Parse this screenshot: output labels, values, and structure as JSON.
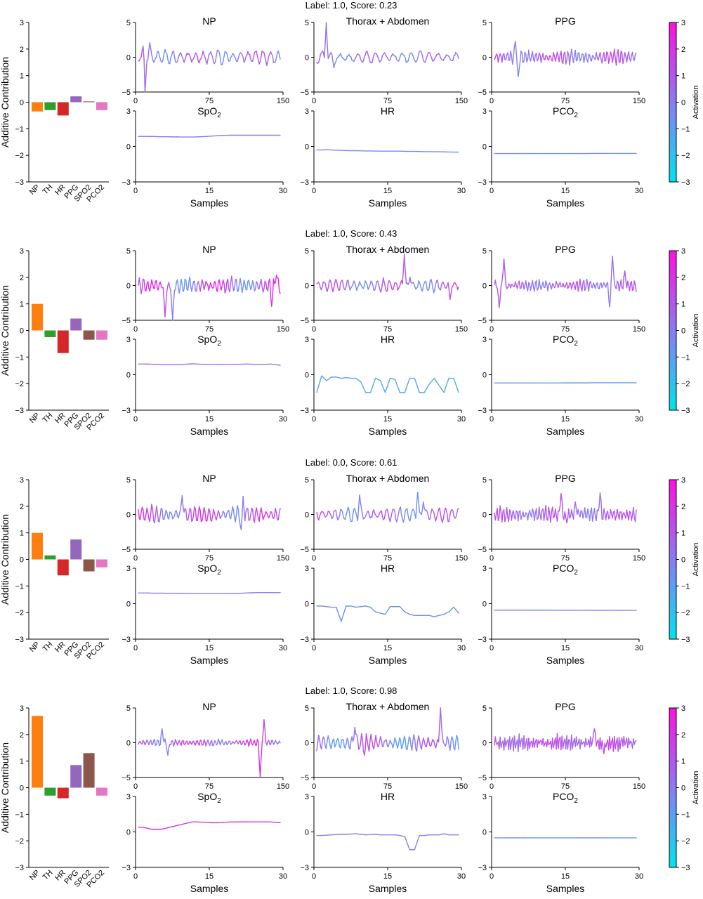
{
  "figure": {
    "colorbar": {
      "label": "Activation",
      "range": [
        -3,
        3
      ],
      "ticks": [
        "3",
        "2",
        "1",
        "0",
        "−1",
        "−2",
        "−3"
      ],
      "gradient": [
        "#00e5ee",
        "#8a7cf0",
        "#ff10e0"
      ]
    },
    "signal_titles": {
      "np": "NP",
      "thorax": "Thorax + Abdomen",
      "ppg": "PPG",
      "spo2": "SpO",
      "spo2_sub": "2",
      "hr": "HR",
      "pco2": "PCO",
      "pco2_sub": "2"
    },
    "x_label": "Samples",
    "y_label": "Additive Contribution",
    "bar_categories": [
      "NP",
      "TH",
      "HR",
      "PPG",
      "SPO2",
      "PCO2"
    ],
    "bar_colors": [
      "#ff7f0e",
      "#2ca02c",
      "#d62728",
      "#9467bd",
      "#8c564b",
      "#e377c2"
    ],
    "bar_yticks": [
      "3",
      "2",
      "1",
      "0",
      "−1",
      "−2",
      "−3"
    ],
    "top_yticks": [
      "5",
      "0",
      "−5"
    ],
    "top_xticks": [
      "0",
      "75",
      "150"
    ],
    "bottom_yticks": [
      "3",
      "0",
      "−3"
    ],
    "bottom_xticks": [
      "0",
      "15",
      "30"
    ]
  },
  "chart_data": [
    {
      "type": "bar",
      "title": "Label: 1.0, Score: 0.23",
      "categories": [
        "NP",
        "TH",
        "HR",
        "PPG",
        "SPO2",
        "PCO2"
      ],
      "values": [
        -0.35,
        -0.3,
        -0.5,
        0.22,
        0.03,
        -0.3
      ],
      "ylabel": "Additive Contribution",
      "ylim": [
        -3,
        3
      ],
      "signals": {
        "np": {
          "xlim": [
            0,
            150
          ],
          "ylim": [
            -5,
            5
          ],
          "freq": 19,
          "amp": 1.0,
          "act": 0.3,
          "act_var": 0.9,
          "features": [
            {
              "x": 7,
              "y": -5.0
            },
            {
              "x": 12,
              "y": 2.1
            },
            {
              "x": 5,
              "y": 1.6
            }
          ],
          "decay": 0
        },
        "thorax": {
          "xlim": [
            0,
            150
          ],
          "ylim": [
            -5,
            5
          ],
          "freq": 16,
          "amp": 0.8,
          "act": 0.2,
          "act_var": 0.7,
          "features": [
            {
              "x": 10,
              "y": 5.0
            },
            {
              "x": 18,
              "y": -1.5
            }
          ],
          "decay": 0
        },
        "ppg": {
          "xlim": [
            0,
            150
          ],
          "ylim": [
            -5,
            5
          ],
          "freq": 40,
          "amp": 1.0,
          "act": 0.6,
          "act_var": 0.8,
          "features": [
            {
              "x": 22,
              "y": 2.3
            },
            {
              "x": 25,
              "y": -2.8
            }
          ],
          "decay": 0
        },
        "spo2": {
          "xlim": [
            0,
            30
          ],
          "ylim": [
            -3,
            3
          ],
          "values": [
            0.85,
            0.85,
            0.84,
            0.84,
            0.83,
            0.82,
            0.82,
            0.81,
            0.81,
            0.8,
            0.8,
            0.8,
            0.81,
            0.83,
            0.85,
            0.87,
            0.9,
            0.92,
            0.94,
            0.95,
            0.95,
            0.95,
            0.95,
            0.95,
            0.95,
            0.95,
            0.95,
            0.95,
            0.95,
            0.95
          ],
          "act": 0.0
        },
        "hr": {
          "xlim": [
            0,
            30
          ],
          "ylim": [
            -3,
            3
          ],
          "values": [
            -0.3,
            -0.3,
            -0.28,
            -0.3,
            -0.32,
            -0.33,
            -0.35,
            -0.36,
            -0.36,
            -0.37,
            -0.38,
            -0.38,
            -0.39,
            -0.4,
            -0.4,
            -0.4,
            -0.4,
            -0.4,
            -0.41,
            -0.42,
            -0.42,
            -0.43,
            -0.44,
            -0.44,
            -0.45,
            -0.45,
            -0.46,
            -0.47,
            -0.48,
            -0.48
          ],
          "act": -0.4
        },
        "pco2": {
          "xlim": [
            0,
            30
          ],
          "ylim": [
            -3,
            3
          ],
          "values": [
            -0.6,
            -0.6,
            -0.6,
            -0.6,
            -0.6,
            -0.6,
            -0.6,
            -0.6,
            -0.6,
            -0.6,
            -0.6,
            -0.6,
            -0.6,
            -0.6,
            -0.6,
            -0.6,
            -0.6,
            -0.6,
            -0.6,
            -0.6,
            -0.59,
            -0.59,
            -0.59,
            -0.59,
            -0.59,
            -0.59,
            -0.59,
            -0.59,
            -0.59,
            -0.59
          ],
          "act": -0.6
        }
      }
    },
    {
      "type": "bar",
      "title": "Label: 1.0, Score: 0.43",
      "categories": [
        "NP",
        "TH",
        "HR",
        "PPG",
        "SPO2",
        "PCO2"
      ],
      "values": [
        1.0,
        -0.25,
        -0.85,
        0.45,
        -0.35,
        -0.35
      ],
      "ylabel": "Additive Contribution",
      "ylim": [
        -3,
        3
      ],
      "signals": {
        "np": {
          "xlim": [
            0,
            150
          ],
          "ylim": [
            -5,
            5
          ],
          "freq": 34,
          "amp": 1.1,
          "act": 0.8,
          "act_var": 1.6,
          "features": [
            {
              "x": 28,
              "y": -4.5
            },
            {
              "x": 36,
              "y": -5.0
            },
            {
              "x": 140,
              "y": -3.0
            },
            {
              "x": 145,
              "y": 1.5
            }
          ],
          "decay": 0
        },
        "thorax": {
          "xlim": [
            0,
            150
          ],
          "ylim": [
            -5,
            5
          ],
          "freq": 24,
          "amp": 0.9,
          "act": 0.4,
          "act_var": 1.0,
          "features": [
            {
              "x": 92,
              "y": 4.5
            },
            {
              "x": 98,
              "y": 1.2
            },
            {
              "x": 140,
              "y": -2.0
            }
          ],
          "decay": 0
        },
        "ppg": {
          "xlim": [
            0,
            150
          ],
          "ylim": [
            -5,
            5
          ],
          "freq": 42,
          "amp": 0.8,
          "act": 0.6,
          "act_var": 0.6,
          "features": [
            {
              "x": 10,
              "y": 3.8
            },
            {
              "x": 5,
              "y": -3.2
            },
            {
              "x": 124,
              "y": 4.2
            },
            {
              "x": 121,
              "y": -3.1
            },
            {
              "x": 137,
              "y": 2.1
            }
          ],
          "decay": 0
        },
        "spo2": {
          "xlim": [
            0,
            30
          ],
          "ylim": [
            -3,
            3
          ],
          "values": [
            0.9,
            0.9,
            0.9,
            0.88,
            0.86,
            0.85,
            0.85,
            0.84,
            0.84,
            0.85,
            0.9,
            0.92,
            0.9,
            0.88,
            0.88,
            0.88,
            0.88,
            0.87,
            0.87,
            0.87,
            0.88,
            0.89,
            0.9,
            0.89,
            0.88,
            0.87,
            0.88,
            0.9,
            0.85,
            0.8
          ],
          "act": 0.2
        },
        "hr": {
          "xlim": [
            0,
            30
          ],
          "ylim": [
            -3,
            3
          ],
          "values": [
            -1.5,
            -0.1,
            -0.5,
            -0.2,
            -0.2,
            -0.3,
            -0.25,
            -0.3,
            -0.3,
            -0.6,
            -1.5,
            -1.5,
            -0.3,
            -0.5,
            -1.5,
            -0.3,
            -0.4,
            -1.5,
            -1.5,
            -0.3,
            -0.3,
            -1.5,
            -1.5,
            -0.8,
            -0.3,
            -0.9,
            -1.5,
            -0.3,
            -0.3,
            -1.5
          ],
          "act": -1.2
        },
        "pco2": {
          "xlim": [
            0,
            30
          ],
          "ylim": [
            -3,
            3
          ],
          "values": [
            -0.7,
            -0.7,
            -0.7,
            -0.7,
            -0.7,
            -0.7,
            -0.7,
            -0.7,
            -0.7,
            -0.7,
            -0.7,
            -0.7,
            -0.7,
            -0.7,
            -0.69,
            -0.69,
            -0.69,
            -0.69,
            -0.69,
            -0.69,
            -0.68,
            -0.68,
            -0.68,
            -0.68,
            -0.68,
            -0.68,
            -0.68,
            -0.68,
            -0.68,
            -0.68
          ],
          "act": -1.0
        }
      }
    },
    {
      "type": "bar",
      "title": "Label: 0.0, Score: 0.61",
      "categories": [
        "NP",
        "TH",
        "HR",
        "PPG",
        "SPO2",
        "PCO2"
      ],
      "values": [
        1.0,
        0.15,
        -0.6,
        0.75,
        -0.45,
        -0.3
      ],
      "ylabel": "Additive Contribution",
      "ylim": [
        -3,
        3
      ],
      "signals": {
        "np": {
          "xlim": [
            0,
            150
          ],
          "ylim": [
            -5,
            5
          ],
          "freq": 30,
          "amp": 1.2,
          "act": 0.8,
          "act_var": 1.3,
          "features": [
            {
              "x": 46,
              "y": 2.7
            },
            {
              "x": 110,
              "y": 2.6
            },
            {
              "x": 108,
              "y": -2.2
            }
          ],
          "decay": 0
        },
        "thorax": {
          "xlim": [
            0,
            150
          ],
          "ylim": [
            -5,
            5
          ],
          "freq": 22,
          "amp": 1.0,
          "act": 0.3,
          "act_var": 1.0,
          "features": [
            {
              "x": 45,
              "y": 2.8
            },
            {
              "x": 106,
              "y": 3.2
            },
            {
              "x": 112,
              "y": 1.8
            }
          ],
          "decay": 0
        },
        "ppg": {
          "xlim": [
            0,
            150
          ],
          "ylim": [
            -5,
            5
          ],
          "freq": 44,
          "amp": 1.1,
          "act": 0.7,
          "act_var": 0.6,
          "features": [
            {
              "x": 70,
              "y": 3.0
            },
            {
              "x": 76,
              "y": -1.2
            },
            {
              "x": 111,
              "y": 3.1
            },
            {
              "x": 85,
              "y": 1.8
            }
          ],
          "decay": 0
        },
        "spo2": {
          "xlim": [
            0,
            30
          ],
          "ylim": [
            -3,
            3
          ],
          "values": [
            0.9,
            0.9,
            0.9,
            0.89,
            0.89,
            0.89,
            0.88,
            0.88,
            0.88,
            0.87,
            0.86,
            0.85,
            0.84,
            0.84,
            0.84,
            0.84,
            0.84,
            0.84,
            0.85,
            0.85,
            0.86,
            0.88,
            0.9,
            0.92,
            0.93,
            0.94,
            0.94,
            0.94,
            0.94,
            0.94
          ],
          "act": 0.0
        },
        "hr": {
          "xlim": [
            0,
            30
          ],
          "ylim": [
            -3,
            3
          ],
          "values": [
            -0.2,
            -0.2,
            -0.25,
            -0.3,
            -0.3,
            -1.5,
            -0.2,
            -0.2,
            -0.3,
            -0.25,
            -0.2,
            -0.3,
            -0.7,
            -0.8,
            -0.9,
            -0.25,
            -0.25,
            -0.25,
            -0.7,
            -0.9,
            -1.0,
            -1.0,
            -1.0,
            -1.0,
            -1.1,
            -1.0,
            -0.9,
            -0.7,
            -0.3,
            -0.8
          ],
          "act": -0.7
        },
        "pco2": {
          "xlim": [
            0,
            30
          ],
          "ylim": [
            -3,
            3
          ],
          "values": [
            -0.55,
            -0.55,
            -0.55,
            -0.55,
            -0.55,
            -0.55,
            -0.55,
            -0.55,
            -0.55,
            -0.55,
            -0.55,
            -0.55,
            -0.55,
            -0.56,
            -0.56,
            -0.56,
            -0.56,
            -0.56,
            -0.56,
            -0.56,
            -0.57,
            -0.57,
            -0.57,
            -0.57,
            -0.57,
            -0.57,
            -0.57,
            -0.57,
            -0.57,
            -0.57
          ],
          "act": -0.3
        }
      }
    },
    {
      "type": "bar",
      "title": "Label: 1.0, Score: 0.98",
      "categories": [
        "NP",
        "TH",
        "HR",
        "PPG",
        "SPO2",
        "PCO2"
      ],
      "values": [
        2.7,
        -0.3,
        -0.4,
        0.85,
        1.3,
        -0.3
      ],
      "ylabel": "Additive Contribution",
      "ylim": [
        -3,
        3
      ],
      "signals": {
        "np": {
          "xlim": [
            0,
            150
          ],
          "ylim": [
            -5,
            5
          ],
          "freq": 40,
          "amp": 0.5,
          "act": 1.0,
          "act_var": 1.2,
          "features": [
            {
              "x": 25,
              "y": 2.0
            },
            {
              "x": 31,
              "y": -1.8
            },
            {
              "x": 128,
              "y": -5.0
            },
            {
              "x": 132,
              "y": 3.3
            }
          ],
          "decay": 0
        },
        "thorax": {
          "xlim": [
            0,
            150
          ],
          "ylim": [
            -5,
            5
          ],
          "freq": 30,
          "amp": 1.1,
          "act": 0.2,
          "act_var": 1.3,
          "features": [
            {
              "x": 130,
              "y": 5.0
            },
            {
              "x": 40,
              "y": 2.2
            },
            {
              "x": 50,
              "y": -1.8
            }
          ],
          "decay": 0
        },
        "ppg": {
          "xlim": [
            0,
            150
          ],
          "ylim": [
            -5,
            5
          ],
          "freq": 60,
          "amp": 1.2,
          "act": 1.0,
          "act_var": 0.5,
          "features": [
            {
              "x": 105,
              "y": 2.0
            },
            {
              "x": 115,
              "y": -1.6
            }
          ],
          "decay": 0
        },
        "spo2": {
          "xlim": [
            0,
            30
          ],
          "ylim": [
            -3,
            3
          ],
          "values": [
            0.4,
            0.4,
            0.3,
            0.2,
            0.2,
            0.25,
            0.35,
            0.45,
            0.55,
            0.65,
            0.75,
            0.85,
            0.85,
            0.82,
            0.8,
            0.78,
            0.78,
            0.8,
            0.82,
            0.84,
            0.85,
            0.85,
            0.85,
            0.85,
            0.85,
            0.85,
            0.85,
            0.85,
            0.8,
            0.78
          ],
          "act": 1.8
        },
        "hr": {
          "xlim": [
            0,
            30
          ],
          "ylim": [
            -3,
            3
          ],
          "values": [
            -0.3,
            -0.3,
            -0.28,
            -0.25,
            -0.22,
            -0.2,
            -0.2,
            -0.18,
            -0.15,
            -0.2,
            -0.25,
            -0.22,
            -0.2,
            -0.25,
            -0.25,
            -0.25,
            -0.25,
            -0.3,
            -0.4,
            -1.5,
            -1.5,
            -0.3,
            -0.3,
            -0.25,
            -0.25,
            -0.25,
            -0.15,
            -0.25,
            -0.25,
            -0.25
          ],
          "act": -0.2
        },
        "pco2": {
          "xlim": [
            0,
            30
          ],
          "ylim": [
            -3,
            3
          ],
          "values": [
            -0.5,
            -0.5,
            -0.5,
            -0.5,
            -0.5,
            -0.5,
            -0.5,
            -0.5,
            -0.5,
            -0.5,
            -0.5,
            -0.5,
            -0.5,
            -0.5,
            -0.5,
            -0.5,
            -0.5,
            -0.5,
            -0.5,
            -0.5,
            -0.5,
            -0.5,
            -0.5,
            -0.5,
            -0.5,
            -0.5,
            -0.5,
            -0.5,
            -0.5,
            -0.5
          ],
          "act": -0.5
        }
      }
    }
  ]
}
